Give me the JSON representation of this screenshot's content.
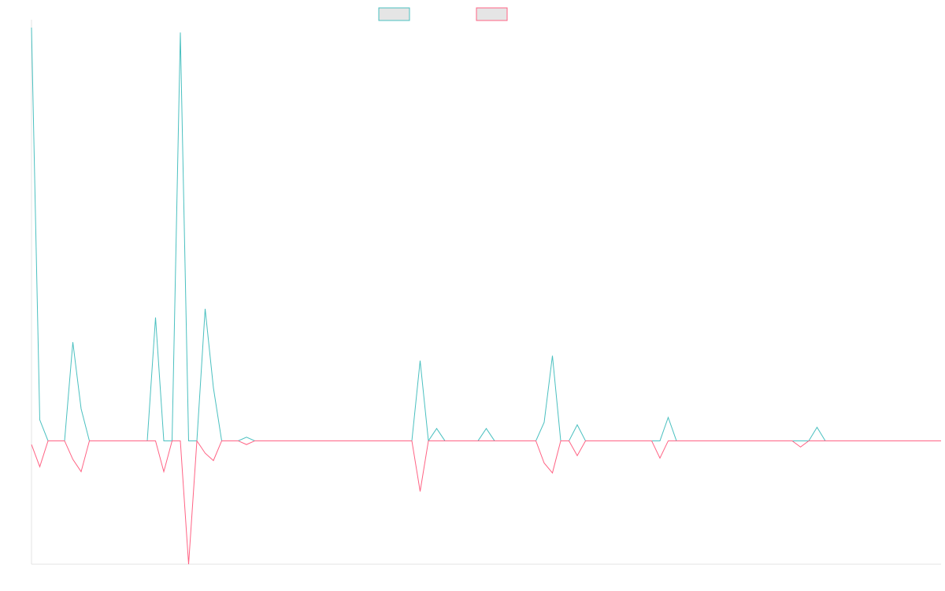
{
  "chart_data": {
    "type": "line",
    "title": "",
    "xlabel": "",
    "ylabel": "",
    "ylim": [
      -100,
      335
    ],
    "grid": false,
    "legend": {
      "placement": "top-center",
      "entries": [
        {
          "name": "",
          "color": "#4bc0c0",
          "fill": "#e5e5e5"
        },
        {
          "name": "",
          "color": "#ff6384",
          "fill": "#e5e5e5"
        }
      ]
    },
    "x": [
      0,
      1,
      2,
      3,
      4,
      5,
      6,
      7,
      8,
      9,
      10,
      11,
      12,
      13,
      14,
      15,
      16,
      17,
      18,
      19,
      20,
      21,
      22,
      23,
      24,
      25,
      26,
      27,
      28,
      29,
      30,
      31,
      32,
      33,
      34,
      35,
      36,
      37,
      38,
      39,
      40,
      41,
      42,
      43,
      44,
      45,
      46,
      47,
      48,
      49,
      50,
      51,
      52,
      53,
      54,
      55,
      56,
      57,
      58,
      59,
      60,
      61,
      62,
      63,
      64,
      65,
      66,
      67,
      68,
      69,
      70,
      71,
      72,
      73,
      74,
      75,
      76,
      77,
      78,
      79,
      80,
      81,
      82,
      83,
      84,
      85,
      86,
      87,
      88,
      89,
      90,
      91,
      92,
      93,
      94,
      95,
      96,
      97,
      98,
      99,
      100,
      101,
      102,
      103,
      104,
      105,
      106,
      107,
      108,
      109,
      110
    ],
    "series": [
      {
        "color": "#4bc0c0",
        "values": [
          335,
          17,
          0,
          0,
          0,
          80,
          26,
          0,
          0,
          0,
          0,
          0,
          0,
          0,
          0,
          100,
          0,
          0,
          331,
          0,
          0,
          107,
          43,
          0,
          0,
          0,
          3,
          0,
          0,
          0,
          0,
          0,
          0,
          0,
          0,
          0,
          0,
          0,
          0,
          0,
          0,
          0,
          0,
          0,
          0,
          0,
          0,
          65,
          0,
          10,
          0,
          0,
          0,
          0,
          0,
          10,
          0,
          0,
          0,
          0,
          0,
          0,
          15,
          69,
          0,
          0,
          13,
          0,
          0,
          0,
          0,
          0,
          0,
          0,
          0,
          0,
          0,
          19,
          0,
          0,
          0,
          0,
          0,
          0,
          0,
          0,
          0,
          0,
          0,
          0,
          0,
          0,
          0,
          0,
          0,
          11,
          0,
          0,
          0,
          0,
          0,
          0,
          0,
          0,
          0,
          0,
          0,
          0,
          0,
          0,
          0
        ]
      },
      {
        "color": "#ff6384",
        "values": [
          -3,
          -21,
          0,
          0,
          0,
          -15,
          -25,
          0,
          0,
          0,
          0,
          0,
          0,
          0,
          0,
          0,
          -25,
          0,
          0,
          -100,
          0,
          -10,
          -16,
          0,
          0,
          0,
          -3,
          0,
          0,
          0,
          0,
          0,
          0,
          0,
          0,
          0,
          0,
          0,
          0,
          0,
          0,
          0,
          0,
          0,
          0,
          0,
          0,
          -41,
          0,
          0,
          0,
          0,
          0,
          0,
          0,
          0,
          0,
          0,
          0,
          0,
          0,
          0,
          -18,
          -26,
          0,
          0,
          -12,
          0,
          0,
          0,
          0,
          0,
          0,
          0,
          0,
          0,
          -14,
          0,
          0,
          0,
          0,
          0,
          0,
          0,
          0,
          0,
          0,
          0,
          0,
          0,
          0,
          0,
          0,
          -5,
          0,
          0,
          0,
          0,
          0,
          0,
          0,
          0,
          0,
          0,
          0,
          0,
          0,
          0,
          0,
          0,
          0
        ]
      }
    ]
  }
}
